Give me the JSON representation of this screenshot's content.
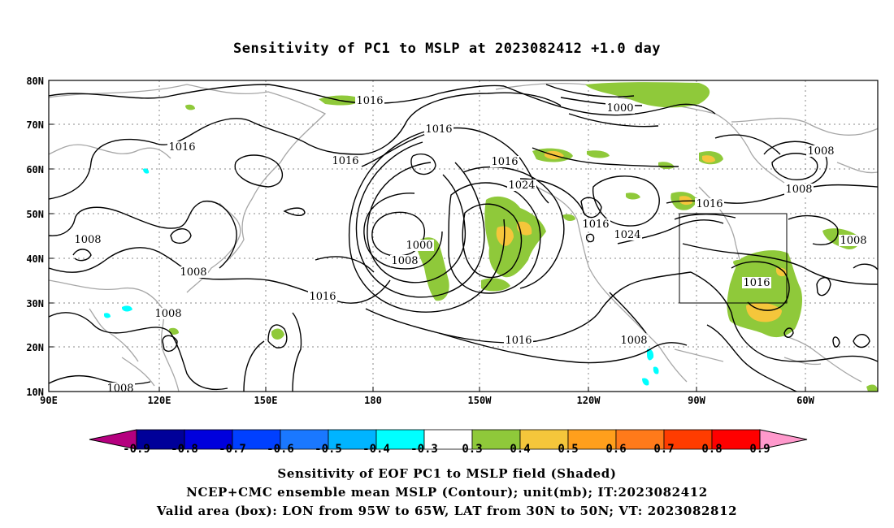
{
  "title": "Sensitivity of PC1 to MSLP at 2023082412 +1.0 day",
  "map": {
    "lat_labels": [
      "80N",
      "70N",
      "60N",
      "50N",
      "40N",
      "30N",
      "20N",
      "10N"
    ],
    "lon_labels": [
      "90E",
      "120E",
      "150E",
      "180",
      "150W",
      "120W",
      "90W",
      "60W"
    ],
    "contour_labels": [
      "1016",
      "1000",
      "1008",
      "1016",
      "1016",
      "1016",
      "1024",
      "1008",
      "1016",
      "1016",
      "1024",
      "1016",
      "1008",
      "1008",
      "1008",
      "1000",
      "1008",
      "1008",
      "1016",
      "1016",
      "1016",
      "1008",
      "1008"
    ],
    "valid_area_box": {
      "lon_min": -95,
      "lon_max": -65,
      "lat_min": 30,
      "lat_max": 50
    },
    "colors": {
      "positive_03": "#8fc93a",
      "positive_04": "#f5c63b",
      "negative_04": "#00ffff",
      "contour": "#000000",
      "coastline": "#a6a6a6"
    }
  },
  "colorbar": {
    "labels": [
      "-0.9",
      "-0.8",
      "-0.7",
      "-0.6",
      "-0.5",
      "-0.4",
      "-0.3",
      "0.3",
      "0.4",
      "0.5",
      "0.6",
      "0.7",
      "0.8",
      "0.9"
    ],
    "colors": [
      "#000099",
      "#0000dd",
      "#0040ff",
      "#1a78ff",
      "#00b4ff",
      "#00ffff",
      "#ffffff",
      "#8fc93a",
      "#f5c63b",
      "#ff9f1c",
      "#ff7a1a",
      "#ff3c00",
      "#ff0000"
    ],
    "low_end_color": "#b5007f",
    "high_end_color": "#ff99cc"
  },
  "captions": [
    "Sensitivity of EOF PC1 to MSLP field (Shaded)",
    "NCEP+CMC ensemble mean MSLP (Contour); unit(mb); IT:2023082412",
    "Valid area (box): LON from 95W to 65W, LAT from 30N to 50N; VT: 2023082812"
  ]
}
